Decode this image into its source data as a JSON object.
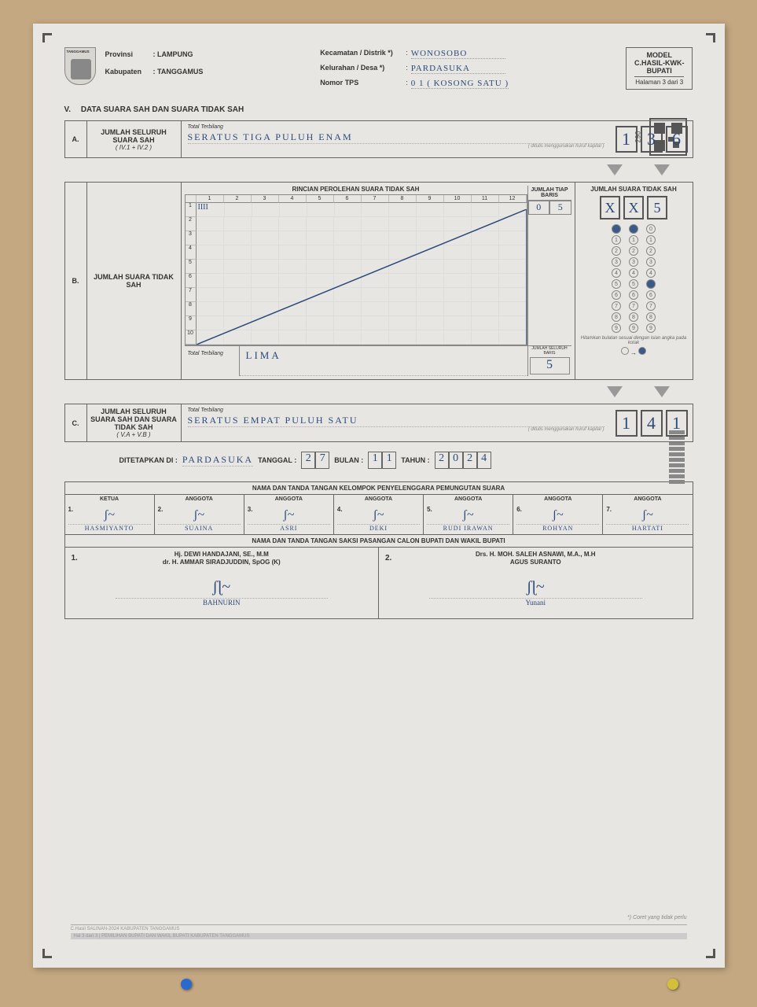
{
  "header": {
    "provinsi_label": "Provinsi",
    "provinsi_value": ": LAMPUNG",
    "kabupaten_label": "Kabupaten",
    "kabupaten_value": ": TANGGAMUS",
    "kecamatan_label": "Kecamatan / Distrik *)",
    "kecamatan_value": "WONOSOBO",
    "kelurahan_label": "Kelurahan / Desa *)",
    "kelurahan_value": "PARDASUKA",
    "nomor_label": "Nomor TPS",
    "nomor_value": "0 1  ( KOSONG SATU )",
    "model_line1": "MODEL",
    "model_line2": "C.HASIL-KWK-",
    "model_line3": "BUPATI",
    "halaman": "Halaman 3 dari 3",
    "logo_text": "TANGGAMUS"
  },
  "qr_num": "290",
  "section_v": {
    "roman": "V.",
    "title": "DATA SUARA SAH DAN SUARA TIDAK SAH"
  },
  "A": {
    "idx": "A.",
    "label": "JUMLAH SELURUH SUARA SAH",
    "sub": "( IV.1 + IV.2 )",
    "terb_label": "Total Terbilang",
    "terb_value": "SERATUS TIGA PULUH ENAM",
    "terb_note": "( ditulis menggunakan huruf kapital )",
    "digits": [
      "1",
      "3",
      "6"
    ]
  },
  "B": {
    "idx": "B.",
    "label": "JUMLAH SUARA TIDAK SAH",
    "tally_title": "RINCIAN PEROLEHAN SUARA TIDAK SAH",
    "cols": [
      "1",
      "2",
      "3",
      "4",
      "5",
      "6",
      "7",
      "8",
      "9",
      "10",
      "11",
      "12"
    ],
    "row1_tally": "IIII",
    "tiap_label": "JUMLAH TIAP BARIS",
    "tiap_d1": "0",
    "tiap_d2": "5",
    "terb_label": "Total Terbilang",
    "terb_value": "LIMA",
    "sum_label": "JUMLAH SELURUH BARIS",
    "sum_digit": "5",
    "right_title": "JUMLAH SUARA TIDAK SAH",
    "right_digits": [
      "X",
      "X",
      "5"
    ],
    "bubbles": [
      {
        "col": [
          {
            "n": "",
            "f": true
          },
          {
            "n": "1"
          },
          {
            "n": "2"
          },
          {
            "n": "3"
          },
          {
            "n": "4"
          },
          {
            "n": "5"
          },
          {
            "n": "6"
          },
          {
            "n": "7"
          },
          {
            "n": "8"
          },
          {
            "n": "9"
          }
        ]
      },
      {
        "col": [
          {
            "n": "",
            "f": true
          },
          {
            "n": "1"
          },
          {
            "n": "2"
          },
          {
            "n": "3"
          },
          {
            "n": "4"
          },
          {
            "n": "5"
          },
          {
            "n": "6"
          },
          {
            "n": "7"
          },
          {
            "n": "8"
          },
          {
            "n": "9"
          }
        ]
      },
      {
        "col": [
          {
            "n": "0"
          },
          {
            "n": "1"
          },
          {
            "n": "2"
          },
          {
            "n": "3"
          },
          {
            "n": "4"
          },
          {
            "n": "5",
            "f": true
          },
          {
            "n": "6"
          },
          {
            "n": "7"
          },
          {
            "n": "8"
          },
          {
            "n": "9"
          }
        ]
      }
    ],
    "note": "Hitamkan bulatan sesuai dengan isian angka pada kotak",
    "legend_arrow": "→"
  },
  "C": {
    "idx": "C.",
    "label": "JUMLAH SELURUH SUARA SAH DAN SUARA TIDAK SAH",
    "sub": "( V.A + V.B )",
    "terb_label": "Total Terbilang",
    "terb_value": "SERATUS EMPAT PULUH SATU",
    "terb_note": "( ditulis menggunakan huruf kapital )",
    "digits": [
      "1",
      "4",
      "1"
    ]
  },
  "date": {
    "prefix": "DITETAPKAN DI :",
    "place": "PARDASUKA",
    "tgl_label": "TANGGAL :",
    "tgl": [
      "2",
      "7"
    ],
    "bln_label": "BULAN :",
    "bln": [
      "1",
      "1"
    ],
    "thn_label": "TAHUN :",
    "thn": [
      "2",
      "0",
      "2",
      "4"
    ]
  },
  "sig": {
    "title1": "NAMA DAN TANDA TANGAN KELOMPOK PENYELENGGARA PEMUNGUTAN SUARA",
    "title2": "NAMA DAN TANDA TANGAN SAKSI PASANGAN CALON BUPATI DAN WAKIL BUPATI",
    "members": [
      {
        "num": "1.",
        "role": "KETUA",
        "name": "HASMIYANTO"
      },
      {
        "num": "2.",
        "role": "ANGGOTA",
        "name": "SUAINA"
      },
      {
        "num": "3.",
        "role": "ANGGOTA",
        "name": "ASRI"
      },
      {
        "num": "4.",
        "role": "ANGGOTA",
        "name": "DEKI"
      },
      {
        "num": "5.",
        "role": "ANGGOTA",
        "name": "RUDI IRAWAN"
      },
      {
        "num": "6.",
        "role": "ANGGOTA",
        "name": "ROHYAN"
      },
      {
        "num": "7.",
        "role": "ANGGOTA",
        "name": "HARTATI"
      }
    ],
    "witness": [
      {
        "num": "1.",
        "cand1": "Hj. DEWI HANDAJANI, SE., M.M",
        "cand2": "dr. H. AMMAR SIRADJUDDIN, SpOG (K)",
        "name": "BAHNURIN"
      },
      {
        "num": "2.",
        "cand1": "Drs. H. MOH. SALEH ASNAWI, M.A., M.H",
        "cand2": "AGUS SURANTO",
        "name": "Yunani"
      }
    ]
  },
  "footnote": "*) Coret yang tidak perlu",
  "footer_left": "C.Hasil SALINAN-2024 KABUPATEN TANGGAMUS",
  "footer_bar": "Hal 3 dari 3 | PEMILIHAN BUPATI DAN WAKIL BUPATI KABUPATEN TANGGAMUS",
  "colors": {
    "paper": "#e8e6e2",
    "ink": "#2a4a7a",
    "border": "#666666",
    "background": "#c4a882"
  }
}
